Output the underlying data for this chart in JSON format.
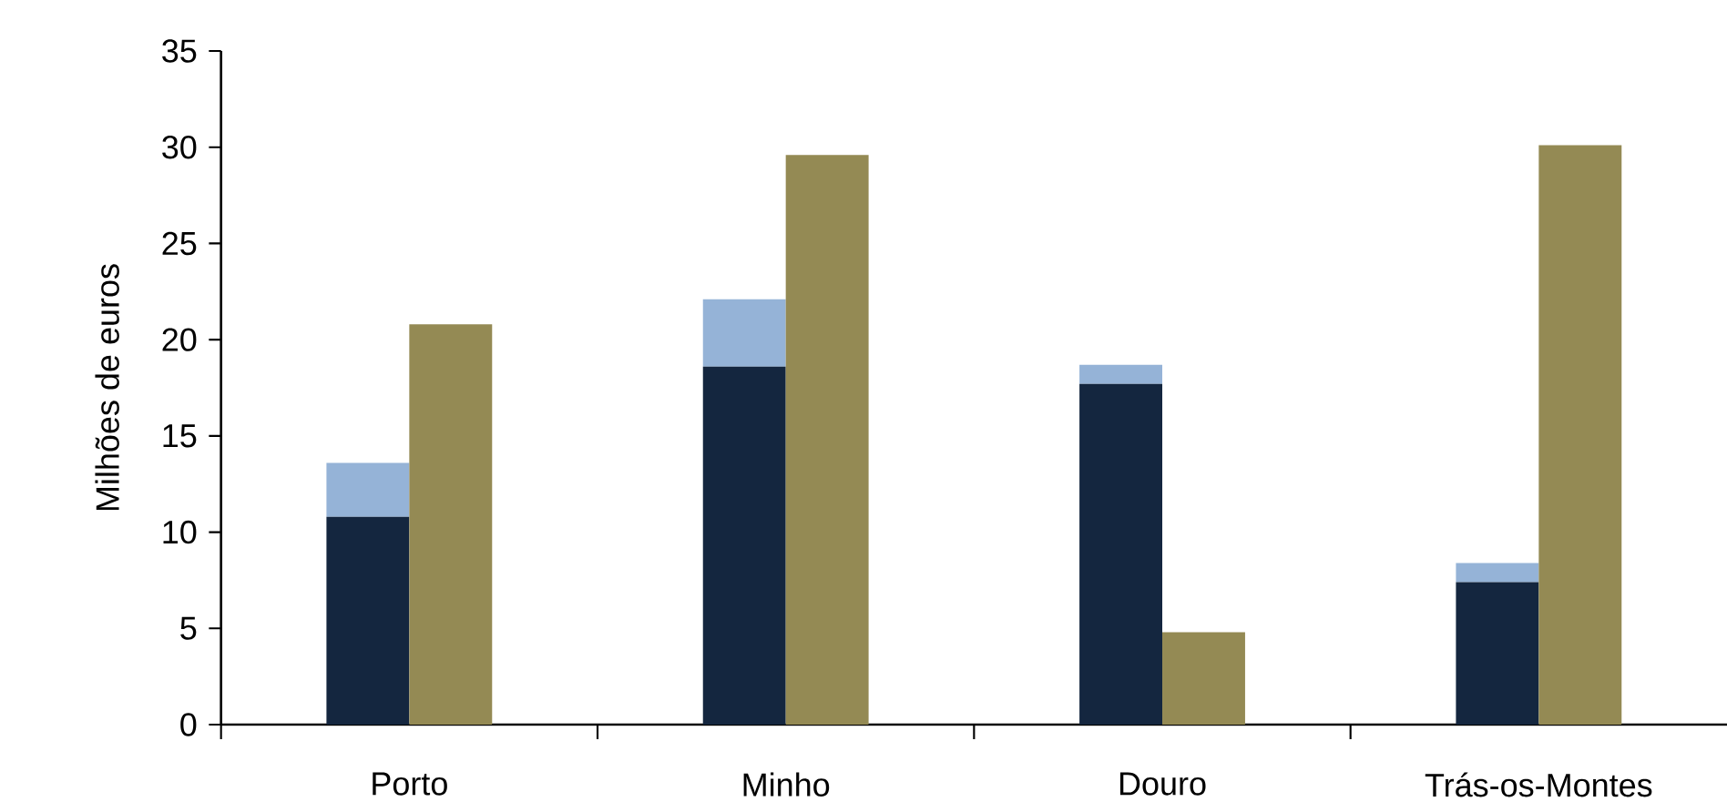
{
  "chart_data": [
    {
      "type": "bar",
      "ylabel": "Milhões de euros",
      "categories": [
        "Porto",
        "Minho",
        "Douro",
        "Trás-os-Montes"
      ],
      "stacked": true,
      "ylim": [
        0,
        35
      ],
      "yticks": [
        0,
        5,
        10,
        15,
        20,
        25,
        30,
        35
      ],
      "series": [
        {
          "color": "#14263f",
          "values": [
            10.8,
            18.6,
            17.7,
            7.4
          ]
        },
        {
          "color": "#95b3d7",
          "values": [
            2.8,
            3.5,
            1.0,
            1.0
          ]
        }
      ]
    },
    {
      "type": "bar",
      "categories": [
        null,
        null,
        null,
        null
      ],
      "ylim": [
        0,
        35
      ],
      "tick_labels": false,
      "series": [
        {
          "color": "#948a54",
          "values": [
            20.8,
            29.6,
            4.8,
            30.1
          ]
        }
      ]
    }
  ]
}
